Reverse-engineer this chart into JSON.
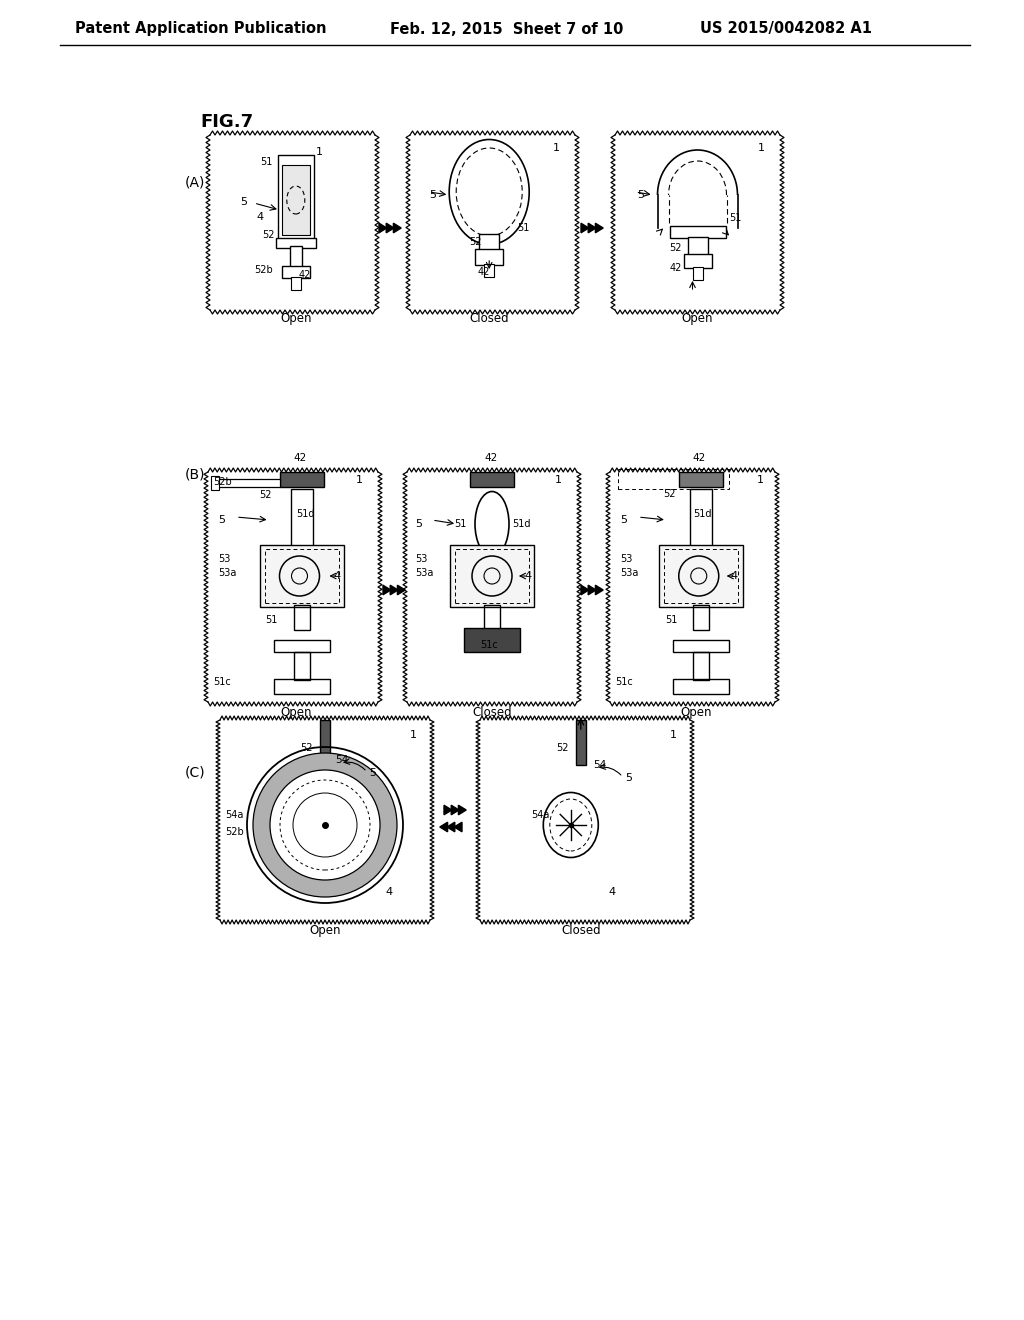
{
  "background_color": "#ffffff",
  "header_left": "Patent Application Publication",
  "header_mid": "Feb. 12, 2015  Sheet 7 of 10",
  "header_right": "US 2015/0042082 A1",
  "fig_label": "FIG.7",
  "section_A": "(A)",
  "section_B": "(B)",
  "section_C": "(C)",
  "labels_A": [
    "Open",
    "Closed",
    "Open"
  ],
  "labels_B": [
    "Open",
    "Closed",
    "Open"
  ],
  "labels_C": [
    "Open",
    "Closed"
  ]
}
